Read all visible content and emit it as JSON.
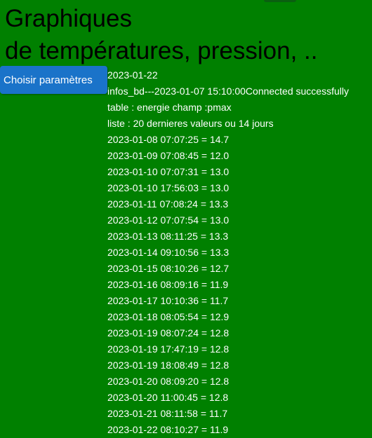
{
  "title": {
    "line1": "Graphiques",
    "line2": "de températures, pression, .."
  },
  "button": {
    "label": "Choisir paramètres"
  },
  "info": {
    "date": "2023-01-22",
    "db_status": "infos_bd---2023-01-07 15:10:00Connected successfully",
    "table_line": "table : energie champ :pmax",
    "list_line": "liste : 20 dernieres valeurs ou 14 jours"
  },
  "values": [
    "2023-01-08 07:07:25 = 14.7",
    "2023-01-09 07:08:45 = 12.0",
    "2023-01-10 07:07:31 = 13.0",
    "2023-01-10 17:56:03 = 13.0",
    "2023-01-11 07:08:24 = 13.3",
    "2023-01-12 07:07:54 = 13.0",
    "2023-01-13 08:11:25 = 13.3",
    "2023-01-14 09:10:56 = 13.3",
    "2023-01-15 08:10:26 = 12.7",
    "2023-01-16 08:09:16 = 11.9",
    "2023-01-17 10:10:36 = 11.7",
    "2023-01-18 08:05:54 = 12.9",
    "2023-01-19 08:07:24 = 12.8",
    "2023-01-19 17:47:19 = 12.8",
    "2023-01-19 18:08:49 = 12.8",
    "2023-01-20 08:09:20 = 12.8",
    "2023-01-20 11:00:45 = 12.8",
    "2023-01-21 08:11:58 = 11.7",
    "2023-01-22 08:10:27 = 11.9"
  ]
}
